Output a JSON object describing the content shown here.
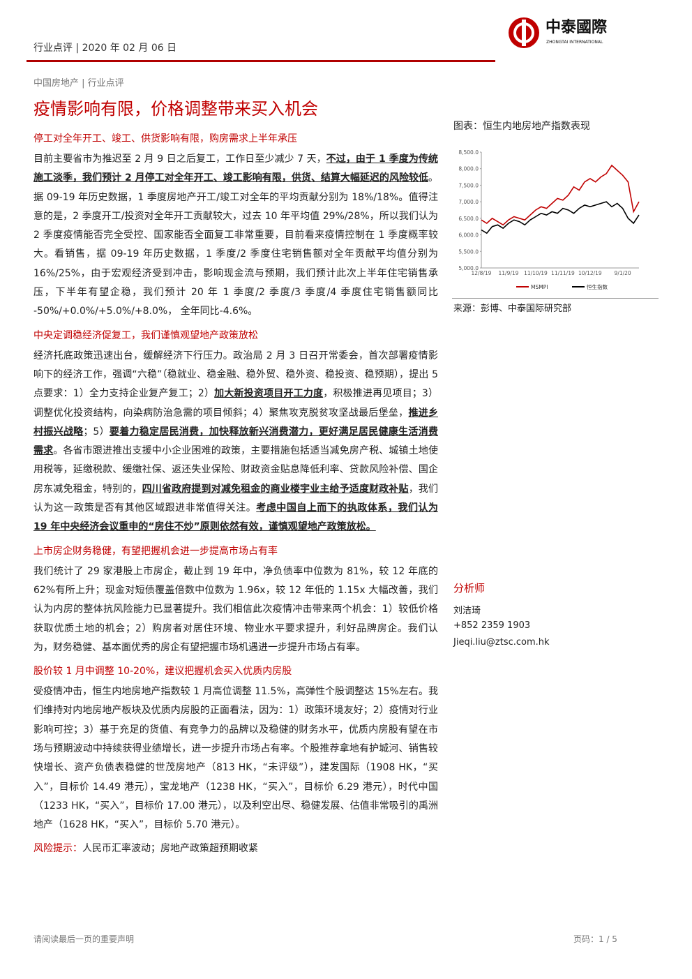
{
  "header": {
    "left": "行业点评 | 2020 年 02 月 06 日",
    "logo_name": "中泰國際",
    "logo_sub": "ZHONGTAI INTERNATIONAL"
  },
  "breadcrumb": "中国房地产 | 行业点评",
  "title": "疫情影响有限，价格调整带来买入机会",
  "sections": [
    {
      "heading": "停工对全年开工、竣工、供货影响有限，购房需求上半年承压",
      "body": [
        {
          "text": "目前主要省市为推迟至 2 月 9 日之后复工，工作日至少减少 7 天，"
        },
        {
          "text": "不过，由于 1 季度为传统施工淡季，我们预计 2 月停工对全年开工、竣工影响有限，供货、结算大幅延迟的风险较低",
          "bold": true
        },
        {
          "text": "。据 09-19 年历史数据，1 季度房地产开工/竣工对全年的平均贡献分别为 18%/18%。值得注意的是，2 季度开工/投资对全年开工贡献较大，过去 10 年平均值 29%/28%，所以我们认为 2 季度疫情能否完全受控、国家能否全面复工非常重要，目前看来疫情控制在 1 季度概率较大。看销售，据 09-19 年历史数据，1 季度/2 季度住宅销售额对全年贡献平均值分别为 16%/25%，由于宏观经济受到冲击，影响现金流与预期，我们预计此次上半年住宅销售承压，下半年有望企稳，我们预计 20 年 1 季度/2 季度/3 季度/4 季度住宅销售额同比 -50%/+0.0%/+5.0%/+8.0%， 全年同比-4.6%。"
        }
      ]
    },
    {
      "heading": "中央定调稳经济促复工，我们谨慎观望地产政策放松",
      "body": [
        {
          "text": "经济托底政策迅速出台，缓解经济下行压力。政治局 2 月 3 日召开常委会，首次部署疫情影响下的经济工作，强调“六稳”（稳就业、稳金融、稳外贸、稳外资、稳投资、稳预期），提出 5 点要求：1）全力支持企业复产复工；2）"
        },
        {
          "text": "加大新投资项目开工力度",
          "bold": true
        },
        {
          "text": "，积极推进再见项目；3）调整优化投资结构，向染病防治急需的项目倾斜；4）聚焦攻克脱贫攻坚战最后堡垒，"
        },
        {
          "text": "推进乡村振兴战略",
          "bold": true
        },
        {
          "text": "；5）"
        },
        {
          "text": "要着力稳定居民消费，加快释放新兴消费潜力，更好满足居民健康生活消费需求",
          "bold": true
        },
        {
          "text": "。各省市跟进推出支援中小企业困难的政策，主要措施包括适当减免房产税、城镇土地使用税等，延缴税款、缓缴社保、返还失业保险、财政资金贴息降低利率、贷款风险补偿、国企房东减免租金，特别的，"
        },
        {
          "text": "四川省政府提到对减免租金的商业楼宇业主给予适度财政补贴",
          "bold": true
        },
        {
          "text": "，我们认为这一政策是否有其他区域跟进非常值得关注。"
        },
        {
          "text": "考虑中国自上而下的执政体系，我们认为 19 年中央经济会议重申的“房住不炒”原则依然有效，谨慎观望地产政策放松。",
          "bold": true
        }
      ]
    },
    {
      "heading": "上市房企财务稳健，有望把握机会进一步提高市场占有率",
      "body": [
        {
          "text": "我们统计了 29 家港股上市房企，截止到 19 年中，净负债率中位数为 81%，较 12 年底的 62%有所上升；现金对短债覆盖倍数中位数为 1.96x，较 12 年低的 1.15x 大幅改善，我们认为内房的整体抗风险能力已显著提升。我们相信此次疫情冲击带来两个机会：1）较低价格获取优质土地的机会；2）购房者对居住环境、物业水平要求提升，利好品牌房企。我们认为，财务稳健、基本面优秀的房企有望把握市场机遇进一步提升市场占有率。"
        }
      ]
    },
    {
      "heading": "股价较 1 月中调整 10-20%，建议把握机会买入优质内房股",
      "body": [
        {
          "text": "受疫情冲击，恒生内地房地产指数较 1 月高位调整 11.5%，高弹性个股调整达 15%左右。我们维持对内地房地产板块及优质内房股的正面看法，因为：1）政策环境友好；2）疫情对行业影响可控；3）基于充足的货值、有竞争力的品牌以及稳健的财务水平，优质内房股有望在市场与预期波动中持续获得业绩增长，进一步提升市场占有率。个股推荐拿地有护城河、销售较快增长、资产负债表稳健的世茂房地产（813 HK，“未评级”），建发国际（1908 HK，“买入”，目标价 14.49 港元），宝龙地产（1238 HK，“买入”，目标价 6.29 港元），时代中国（1233 HK，“买入”，目标价 17.00 港元），以及利空出尽、稳健发展、估值非常吸引的禹洲地产（1628 HK，“买入”，目标价 5.70 港元）。"
        }
      ]
    }
  ],
  "risk": {
    "label": "风险提示：",
    "text": "人民币汇率波动；房地产政策超预期收紧"
  },
  "figure": {
    "caption": "图表：恒生内地房地产指数表现",
    "source": "来源：彭博、中泰国际研究部"
  },
  "chart_data": {
    "type": "line",
    "categories": [
      "12/8/19",
      null,
      null,
      null,
      null,
      "11/9/19",
      null,
      null,
      null,
      null,
      "11/10/19",
      null,
      null,
      null,
      null,
      "11/11/19",
      null,
      null,
      null,
      null,
      "10/12/19",
      null,
      null,
      null,
      null,
      null,
      "9/1/20",
      null,
      null,
      null
    ],
    "series": [
      {
        "name": "MSMPI",
        "color": "#c00000",
        "values": [
          6450,
          6350,
          6500,
          6400,
          6300,
          6450,
          6550,
          6500,
          6450,
          6600,
          6750,
          6850,
          6800,
          6950,
          7100,
          7050,
          7200,
          7450,
          7350,
          7600,
          7700,
          7600,
          7750,
          7850,
          8100,
          7950,
          7800,
          7600,
          6700,
          7000
        ]
      },
      {
        "name": "恒生指数",
        "color": "#000000",
        "values": [
          6150,
          6050,
          6250,
          6300,
          6200,
          6350,
          6450,
          6400,
          6300,
          6450,
          6550,
          6650,
          6600,
          6700,
          6650,
          6800,
          6750,
          6650,
          6800,
          6900,
          6850,
          6900,
          6950,
          7000,
          6850,
          6950,
          6800,
          6500,
          6350,
          6600
        ]
      }
    ],
    "ylim": [
      5000,
      8500
    ],
    "yticks": [
      {
        "value": 5000,
        "label": "5,000.0"
      },
      {
        "value": 5500,
        "label": "5,500.0"
      },
      {
        "value": 6000,
        "label": "6,000.0"
      },
      {
        "value": 6500,
        "label": "6,500.0"
      },
      {
        "value": 7000,
        "label": "7,000.0"
      },
      {
        "value": 7500,
        "label": "7,500.0"
      },
      {
        "value": 8000,
        "label": "8,000.0"
      },
      {
        "value": 8500,
        "label": "8,500.0"
      }
    ]
  },
  "analyst": {
    "heading": "分析师",
    "name": "刘洁琦",
    "phone": "+852 2359 1903",
    "email": "Jieqi.liu@ztsc.com.hk"
  },
  "footer": {
    "left": "请阅读最后一页的重要声明",
    "page": "页码：1 / 5"
  }
}
